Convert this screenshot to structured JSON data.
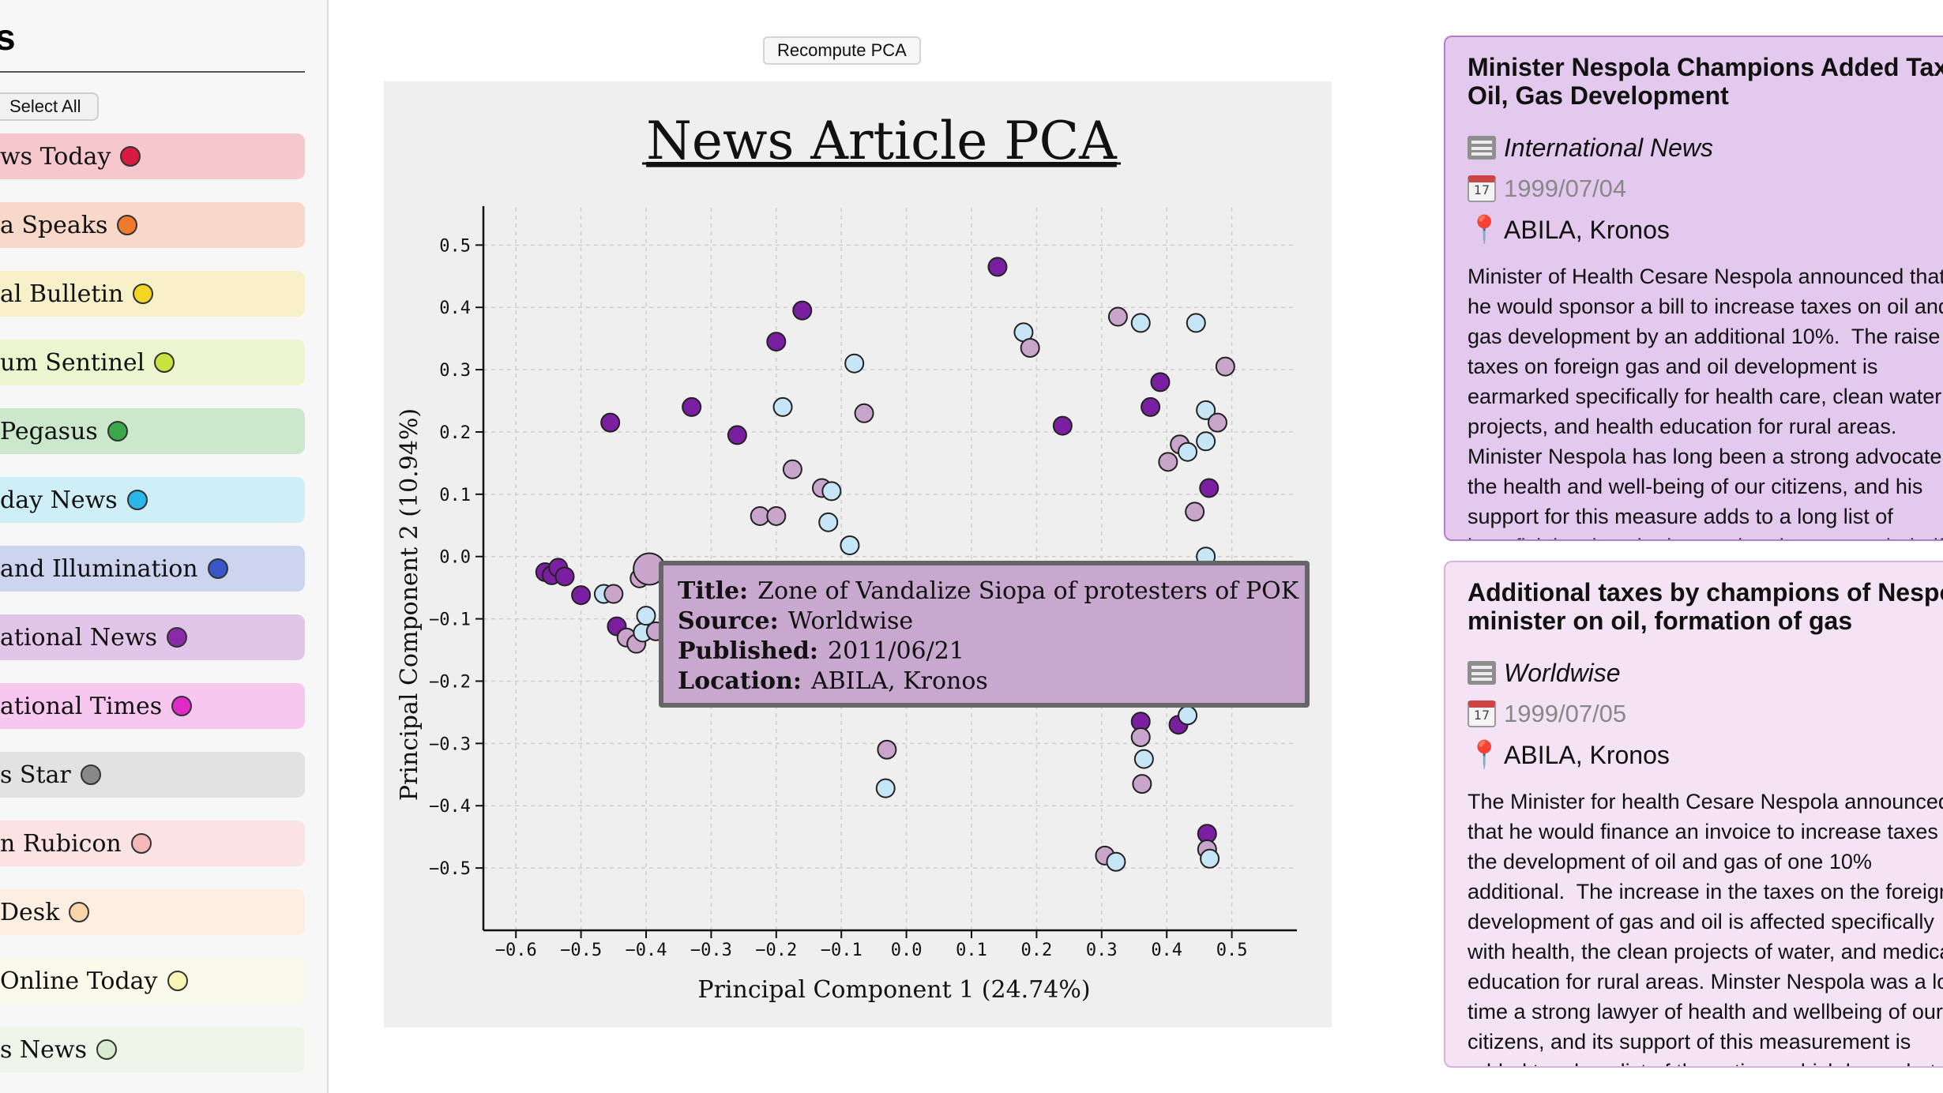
{
  "sidebar": {
    "title": "s",
    "select_all_label": "Select All",
    "sources": [
      {
        "label": "ws Today",
        "bg": "#f6c7cd",
        "dot": "#d81b40"
      },
      {
        "label": "a Speaks",
        "bg": "#f8d8c8",
        "dot": "#f07a2b"
      },
      {
        "label": "al Bulletin",
        "bg": "#f8f0c8",
        "dot": "#f3d523"
      },
      {
        "label": "um Sentinel",
        "bg": "#ecf5cd",
        "dot": "#c8e240"
      },
      {
        "label": "Pegasus",
        "bg": "#cce8cc",
        "dot": "#3aa84a"
      },
      {
        "label": "day News",
        "bg": "#cfeff8",
        "dot": "#2ab6e6"
      },
      {
        "label": "and Illumination",
        "bg": "#ccd4f0",
        "dot": "#3a55c8"
      },
      {
        "label": "ational News",
        "bg": "#e1c6ea",
        "dot": "#8a2aa8"
      },
      {
        "label": "ational Times",
        "bg": "#f7c7f0",
        "dot": "#e02ac8"
      },
      {
        "label": "s Star",
        "bg": "#e2e2e2",
        "dot": "#888888"
      },
      {
        "label": "n Rubicon",
        "bg": "#fbe3e3",
        "dot": "#f6b8b8"
      },
      {
        "label": "Desk",
        "bg": "#fcefe2",
        "dot": "#f8d6a8"
      },
      {
        "label": "Online Today",
        "bg": "#fafaea",
        "dot": "#f8f4b4"
      },
      {
        "label": "s News",
        "bg": "#eef6ea",
        "dot": "#d8ecd0"
      }
    ]
  },
  "toolbar": {
    "recompute_label": "Recompute PCA"
  },
  "chart_data": {
    "type": "scatter",
    "title": "News Article PCA",
    "xlabel": "Principal Component 1 (24.74%)",
    "ylabel": "Principal Component 2 (10.94%)",
    "xlim": [
      -0.65,
      0.6
    ],
    "ylim": [
      -0.6,
      0.56
    ],
    "xticks": [
      -0.6,
      -0.5,
      -0.4,
      -0.3,
      -0.2,
      -0.1,
      0.0,
      0.1,
      0.2,
      0.3,
      0.4,
      0.5
    ],
    "yticks": [
      0.5,
      0.4,
      0.3,
      0.2,
      0.1,
      0.0,
      -0.1,
      -0.2,
      -0.3,
      -0.4,
      -0.5
    ],
    "grid": true,
    "colors": {
      "purple": "#7b1fa2",
      "mauve": "#c9a5cc",
      "lightblue": "#c6e6f7"
    },
    "points": [
      {
        "x": 0.14,
        "y": 0.465,
        "c": "purple"
      },
      {
        "x": -0.16,
        "y": 0.395,
        "c": "purple"
      },
      {
        "x": -0.2,
        "y": 0.345,
        "c": "purple"
      },
      {
        "x": -0.33,
        "y": 0.24,
        "c": "purple"
      },
      {
        "x": -0.26,
        "y": 0.195,
        "c": "purple"
      },
      {
        "x": -0.455,
        "y": 0.215,
        "c": "purple"
      },
      {
        "x": -0.08,
        "y": 0.31,
        "c": "lightblue"
      },
      {
        "x": -0.19,
        "y": 0.24,
        "c": "lightblue"
      },
      {
        "x": -0.065,
        "y": 0.23,
        "c": "mauve"
      },
      {
        "x": -0.175,
        "y": 0.14,
        "c": "mauve"
      },
      {
        "x": -0.13,
        "y": 0.11,
        "c": "mauve"
      },
      {
        "x": -0.115,
        "y": 0.105,
        "c": "lightblue"
      },
      {
        "x": -0.225,
        "y": 0.065,
        "c": "mauve"
      },
      {
        "x": -0.2,
        "y": 0.065,
        "c": "mauve"
      },
      {
        "x": -0.12,
        "y": 0.055,
        "c": "lightblue"
      },
      {
        "x": -0.087,
        "y": 0.018,
        "c": "lightblue"
      },
      {
        "x": 0.18,
        "y": 0.36,
        "c": "lightblue"
      },
      {
        "x": 0.19,
        "y": 0.335,
        "c": "mauve"
      },
      {
        "x": 0.24,
        "y": 0.21,
        "c": "purple"
      },
      {
        "x": 0.325,
        "y": 0.385,
        "c": "mauve"
      },
      {
        "x": 0.36,
        "y": 0.375,
        "c": "lightblue"
      },
      {
        "x": 0.445,
        "y": 0.375,
        "c": "lightblue"
      },
      {
        "x": 0.49,
        "y": 0.305,
        "c": "mauve"
      },
      {
        "x": 0.39,
        "y": 0.28,
        "c": "purple"
      },
      {
        "x": 0.375,
        "y": 0.24,
        "c": "purple"
      },
      {
        "x": 0.46,
        "y": 0.235,
        "c": "lightblue"
      },
      {
        "x": 0.478,
        "y": 0.215,
        "c": "mauve"
      },
      {
        "x": 0.46,
        "y": 0.185,
        "c": "lightblue"
      },
      {
        "x": 0.42,
        "y": 0.18,
        "c": "mauve"
      },
      {
        "x": 0.432,
        "y": 0.168,
        "c": "lightblue"
      },
      {
        "x": 0.402,
        "y": 0.152,
        "c": "mauve"
      },
      {
        "x": 0.465,
        "y": 0.11,
        "c": "purple"
      },
      {
        "x": 0.443,
        "y": 0.072,
        "c": "mauve"
      },
      {
        "x": 0.46,
        "y": 0.0,
        "c": "lightblue"
      },
      {
        "x": -0.555,
        "y": -0.025,
        "c": "purple"
      },
      {
        "x": -0.545,
        "y": -0.03,
        "c": "purple"
      },
      {
        "x": -0.535,
        "y": -0.018,
        "c": "purple"
      },
      {
        "x": -0.525,
        "y": -0.032,
        "c": "purple"
      },
      {
        "x": -0.5,
        "y": -0.062,
        "c": "purple"
      },
      {
        "x": -0.465,
        "y": -0.06,
        "c": "lightblue"
      },
      {
        "x": -0.45,
        "y": -0.06,
        "c": "mauve"
      },
      {
        "x": -0.445,
        "y": -0.112,
        "c": "purple"
      },
      {
        "x": -0.43,
        "y": -0.13,
        "c": "mauve"
      },
      {
        "x": -0.415,
        "y": -0.14,
        "c": "mauve"
      },
      {
        "x": -0.405,
        "y": -0.122,
        "c": "lightblue"
      },
      {
        "x": -0.4,
        "y": -0.095,
        "c": "lightblue"
      },
      {
        "x": -0.385,
        "y": -0.12,
        "c": "mauve"
      },
      {
        "x": -0.41,
        "y": -0.035,
        "c": "mauve"
      },
      {
        "x": -0.395,
        "y": -0.02,
        "c": "mauve",
        "r": 20
      },
      {
        "x": 0.36,
        "y": -0.265,
        "c": "purple"
      },
      {
        "x": 0.418,
        "y": -0.27,
        "c": "purple"
      },
      {
        "x": 0.432,
        "y": -0.255,
        "c": "lightblue"
      },
      {
        "x": 0.36,
        "y": -0.29,
        "c": "mauve"
      },
      {
        "x": 0.365,
        "y": -0.325,
        "c": "lightblue"
      },
      {
        "x": 0.362,
        "y": -0.365,
        "c": "mauve"
      },
      {
        "x": -0.03,
        "y": -0.31,
        "c": "mauve"
      },
      {
        "x": -0.032,
        "y": -0.372,
        "c": "lightblue"
      },
      {
        "x": 0.462,
        "y": -0.445,
        "c": "purple"
      },
      {
        "x": 0.462,
        "y": -0.47,
        "c": "mauve"
      },
      {
        "x": 0.466,
        "y": -0.485,
        "c": "lightblue"
      },
      {
        "x": 0.305,
        "y": -0.48,
        "c": "mauve"
      },
      {
        "x": 0.322,
        "y": -0.49,
        "c": "lightblue"
      }
    ]
  },
  "tooltip": {
    "title_key": "Title:",
    "title_value": "Zone of Vandalize Siopa of protesters of POK",
    "source_key": "Source:",
    "source_value": "Worldwise",
    "published_key": "Published:",
    "published_value": "2011/06/21",
    "location_key": "Location:",
    "location_value": "ABILA, Kronos"
  },
  "articles": [
    {
      "headline": "Minister Nespola Champions Added Tax on Oil, Gas Development",
      "source": "International News",
      "date": "1999/07/04",
      "location": "ABILA, Kronos",
      "calendar_day": "17",
      "body": "Minister of Health Cesare Nespola announced that he would sponsor a bill to increase taxes on oil and gas development by an additional 10%.  The raise in taxes on foreign gas and oil development is earmarked specifically for health care, clean water projects, and health education for rural areas.  Minister Nespola has long been a strong advocate of the health and well-being of our citizens, and his support for this measure adds to a long list of beneficial actions he has undertaken on our behalf.  Last year, Minister Nespola sponsored a measure of financial relief"
    },
    {
      "headline": "Additional taxes by champions of Nespola minister on oil, formation of gas",
      "source": "Worldwise",
      "date": "1999/07/05",
      "location": "ABILA, Kronos",
      "calendar_day": "17",
      "body": "The Minister for health Cesare Nespola announced that he would finance an invoice to increase taxes on the development of oil and gas of one 10% additional.  The increase in the taxes on the foreign development of gas and oil is affected specifically with health, the clean projects of water, and medical education for rural areas. Minster Nespola was a long time a strong lawyer of health and wellbeing of our citizens, and its support of this measurement is added to a long list of the actions which he undertook on behalf. Last year, the Minister Nespola"
    }
  ]
}
